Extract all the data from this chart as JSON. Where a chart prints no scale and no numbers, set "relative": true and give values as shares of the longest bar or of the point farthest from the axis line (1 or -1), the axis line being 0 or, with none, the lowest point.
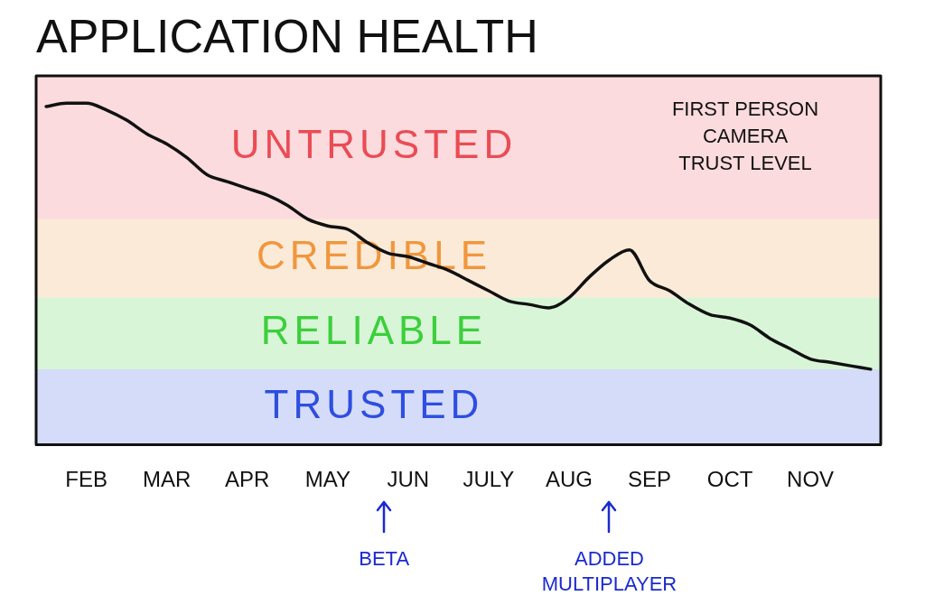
{
  "chart_data": {
    "type": "line",
    "title": "APPLICATION HEALTH",
    "categories": [
      null,
      null,
      "FEB",
      null,
      null,
      null,
      "MAR",
      null,
      null,
      null,
      "APR",
      null,
      null,
      null,
      "MAY",
      null,
      null,
      null,
      "JUN",
      null,
      null,
      null,
      "JULY",
      null,
      null,
      null,
      "AUG",
      null,
      null,
      null,
      "SEP",
      null,
      null,
      null,
      "OCT",
      null,
      null,
      null,
      "NOV",
      null,
      null,
      null
    ],
    "values": [
      0.99,
      1.0,
      1.0,
      0.98,
      0.95,
      0.91,
      0.88,
      0.84,
      0.79,
      0.77,
      0.75,
      0.73,
      0.7,
      0.66,
      0.64,
      0.63,
      0.59,
      0.56,
      0.55,
      0.53,
      0.51,
      0.48,
      0.45,
      0.42,
      0.41,
      0.4,
      0.43,
      0.49,
      0.54,
      0.57,
      0.48,
      0.45,
      0.41,
      0.38,
      0.37,
      0.35,
      0.31,
      0.28,
      0.25,
      0.24,
      0.23,
      0.22
    ],
    "color": "#111111",
    "relative": true,
    "bands": [
      {
        "axis": "y",
        "from": 0.66,
        "to": 1.08,
        "label": "UNTRUSTED",
        "color": "#ea4c55"
      },
      {
        "axis": "y",
        "from": 0.43,
        "to": 0.66,
        "label": "CREDIBLE",
        "color": "#f0973c"
      },
      {
        "axis": "y",
        "from": 0.22,
        "to": 0.43,
        "label": "RELIABLE",
        "color": "#3ccf3c"
      },
      {
        "axis": "y",
        "from": 0,
        "to": 0.22,
        "label": "TRUSTED",
        "color": "#2e4ee0"
      }
    ],
    "annotations": [
      "FIRST PERSON CAMERA TRUST LEVEL",
      "BETA",
      "ADDED MULTIPLAYER"
    ]
  }
}
